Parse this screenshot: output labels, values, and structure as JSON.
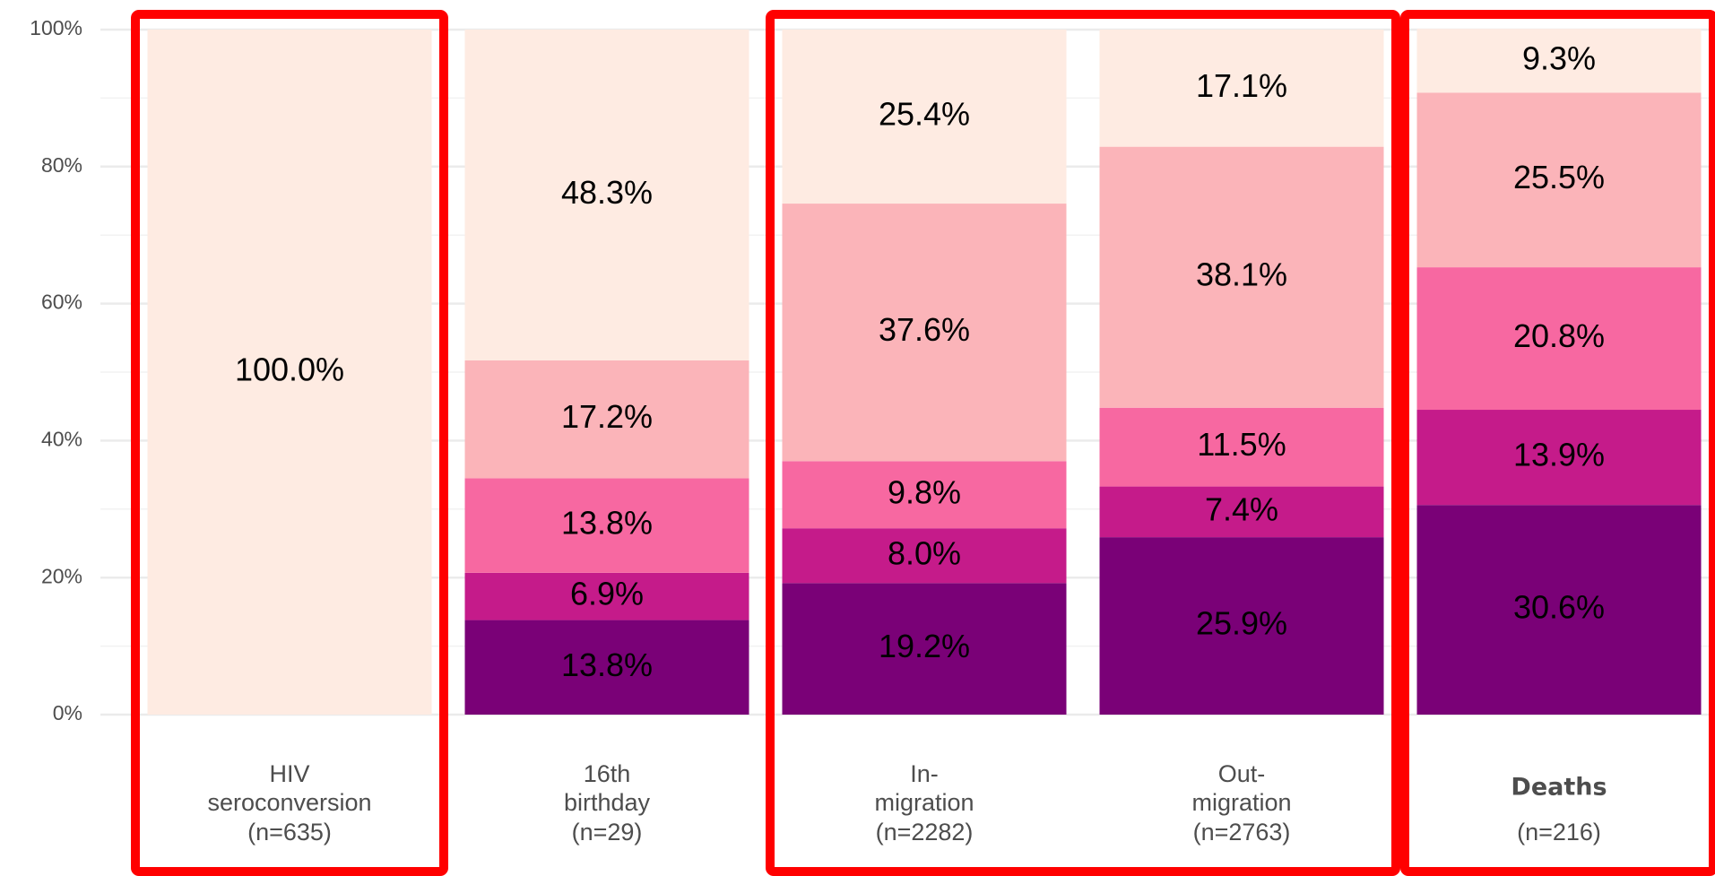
{
  "chart_data": {
    "type": "stacked_bar",
    "categories": [
      [
        "HIV",
        "seroconversion",
        "(n=635)"
      ],
      [
        "16th",
        "birthday",
        "(n=29)"
      ],
      [
        "In-",
        "migration",
        "(n=2282)"
      ],
      [
        "Out-",
        "migration",
        "(n=2763)"
      ],
      [
        "Deaths",
        "(n=216)"
      ]
    ],
    "bold_category": 4,
    "series": [
      {
        "color": "#7a0177",
        "values": [
          0,
          13.8,
          19.2,
          25.9,
          30.6
        ],
        "value_labels": [
          null,
          "13.8%",
          "19.2%",
          "25.9%",
          "30.6%"
        ]
      },
      {
        "color": "#c51b8a",
        "values": [
          0,
          6.9,
          8.0,
          7.4,
          13.9
        ],
        "value_labels": [
          null,
          "6.9%",
          "8.0%",
          "7.4%",
          "13.9%"
        ]
      },
      {
        "color": "#f768a1",
        "values": [
          0,
          13.8,
          9.8,
          11.5,
          20.8
        ],
        "value_labels": [
          null,
          "13.8%",
          "9.8%",
          "11.5%",
          "20.8%"
        ]
      },
      {
        "color": "#fbb4b9",
        "values": [
          0,
          17.2,
          37.6,
          38.1,
          25.5
        ],
        "value_labels": [
          null,
          "17.2%",
          "37.6%",
          "38.1%",
          "25.5%"
        ]
      },
      {
        "color": "#feebe2",
        "values": [
          100,
          48.3,
          25.4,
          17.1,
          9.3
        ],
        "value_labels": [
          "100.0%",
          "48.3%",
          "25.4%",
          "17.1%",
          "9.3%"
        ]
      }
    ],
    "ylim": [
      0,
      100
    ],
    "yticks": [
      {
        "value": 0,
        "label": "0%"
      },
      {
        "value": 20,
        "label": "20%"
      },
      {
        "value": 40,
        "label": "40%"
      },
      {
        "value": 60,
        "label": "60%"
      },
      {
        "value": 80,
        "label": "80%"
      },
      {
        "value": 100,
        "label": "100%"
      }
    ],
    "minor_yticks": [
      10,
      30,
      50,
      70,
      90
    ],
    "grid": true,
    "highlights": [
      [
        0,
        0
      ],
      [
        2,
        3
      ],
      [
        4,
        4
      ]
    ],
    "highlight_color": "#ff0000"
  }
}
